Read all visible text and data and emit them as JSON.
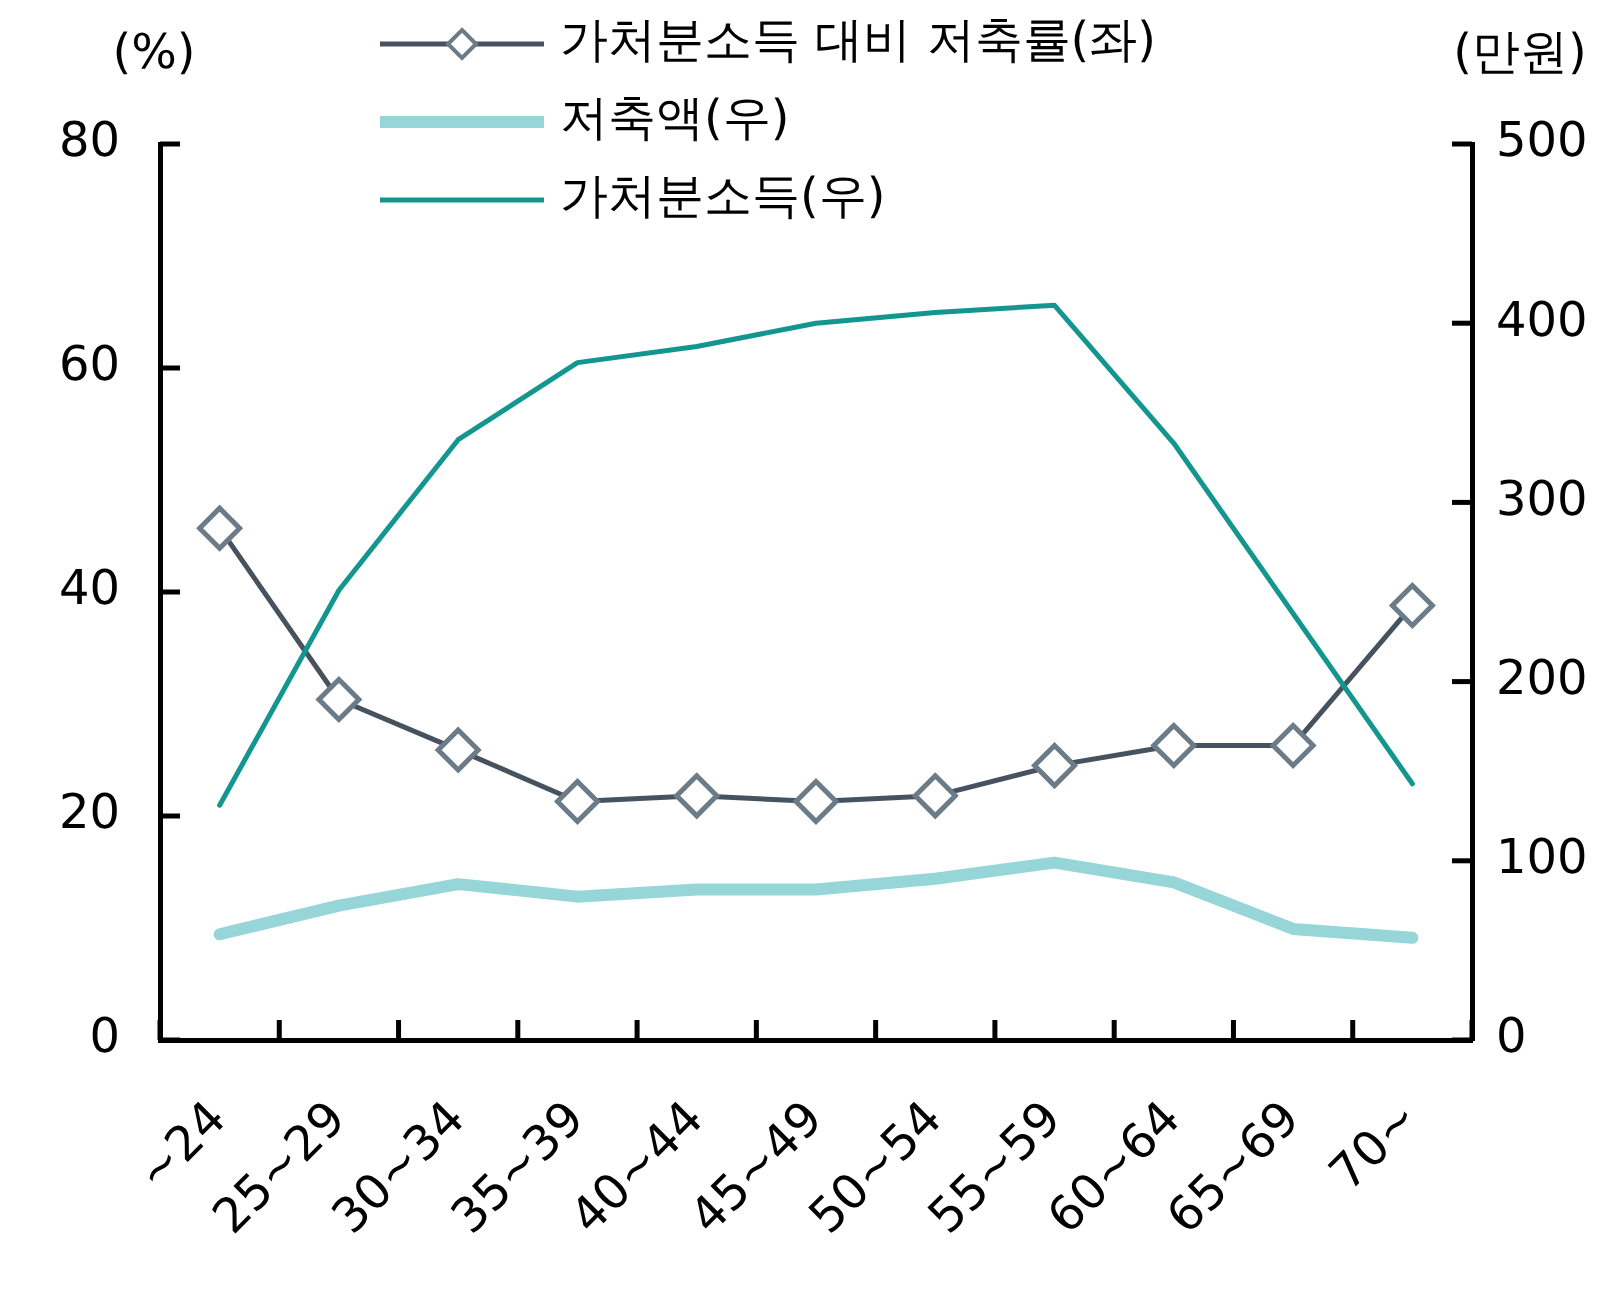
{
  "chart_data": {
    "type": "line",
    "categories": [
      "~24",
      "25~29",
      "30~34",
      "35~39",
      "40~44",
      "45~49",
      "50~54",
      "55~59",
      "60~64",
      "65~69",
      "70~"
    ],
    "series": [
      {
        "name": "가처분소득 대비 저축률(좌)",
        "color": "#46535f",
        "marker": "diamond",
        "values": [
          45.7,
          30.4,
          25.9,
          21.3,
          21.8,
          21.3,
          21.8,
          24.5,
          26.3,
          26.3,
          38.8
        ]
      },
      {
        "name": "저축액(우)",
        "color": "#96d5d8",
        "axis": "y2",
        "marker": "none",
        "values": [
          59,
          75,
          87,
          80,
          84,
          84,
          90,
          99,
          88,
          62,
          57
        ]
      },
      {
        "name": "가처분소득(우)",
        "color": "#13968f",
        "axis": "y2",
        "marker": "none",
        "values": [
          131,
          251,
          335,
          378,
          387,
          400,
          406,
          410,
          333,
          238,
          143
        ]
      }
    ],
    "ylabel": "(%)",
    "y2label": "(만원)",
    "ylim": [
      0,
      80
    ],
    "yticks": [
      0,
      20,
      40,
      60,
      80
    ],
    "y2lim": [
      0,
      500
    ],
    "y2ticks": [
      0,
      100,
      200,
      300,
      400,
      500
    ],
    "grid": false,
    "legend": "top"
  }
}
